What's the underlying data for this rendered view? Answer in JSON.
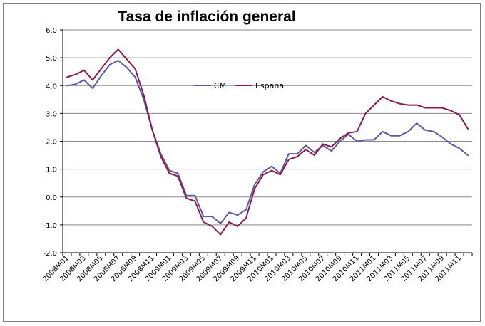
{
  "chart_data": {
    "type": "line",
    "title": "Tasa de inflación general",
    "xlabel": "",
    "ylabel": "",
    "ylim": [
      -2.0,
      6.0
    ],
    "yticks": [
      "-2.0",
      "-1.0",
      "0.0",
      "1.0",
      "2.0",
      "3.0",
      "4.0",
      "5.0",
      "6.0"
    ],
    "grid": true,
    "legend_position": "center-top",
    "categories": [
      "2008M01",
      "2008M02",
      "2008M03",
      "2008M04",
      "2008M05",
      "2008M06",
      "2008M07",
      "2008M08",
      "2008M09",
      "2008M10",
      "2008M11",
      "2008M12",
      "2009M01",
      "2009M02",
      "2009M03",
      "2009M04",
      "2009M05",
      "2009M06",
      "2009M07",
      "2009M08",
      "2009M09",
      "2009M10",
      "2009M11",
      "2009M12",
      "2010M01",
      "2010M02",
      "2010M03",
      "2010M04",
      "2010M05",
      "2010M06",
      "2010M07",
      "2010M08",
      "2010M09",
      "2010M10",
      "2010M11",
      "2010M12",
      "2011M01",
      "2011M02",
      "2011M03",
      "2011M04",
      "2011M05",
      "2011M06",
      "2011M07",
      "2011M08",
      "2011M09",
      "2011M10",
      "2011M11",
      "2011M12"
    ],
    "xtick_labels": [
      "2008M01",
      "2008M03",
      "2008M05",
      "2008M07",
      "2008M09",
      "2008M11",
      "2009M01",
      "2009M03",
      "2009M05",
      "2009M07",
      "2009M09",
      "2009M11",
      "2010M01",
      "2010M03",
      "2010M05",
      "2010M07",
      "2010M09",
      "2010M11",
      "2011M01",
      "2011M03",
      "2011M05",
      "2011M07",
      "2011M09",
      "2011M11"
    ],
    "series": [
      {
        "name": "CM",
        "color": "#5a5aa0",
        "values": [
          4.0,
          4.05,
          4.2,
          3.9,
          4.35,
          4.75,
          4.9,
          4.65,
          4.3,
          3.5,
          2.4,
          1.55,
          0.95,
          0.85,
          0.05,
          0.05,
          -0.7,
          -0.7,
          -0.95,
          -0.55,
          -0.65,
          -0.45,
          0.45,
          0.9,
          1.1,
          0.85,
          1.55,
          1.55,
          1.85,
          1.6,
          1.85,
          1.65,
          2.0,
          2.25,
          2.0,
          2.05,
          2.05,
          2.35,
          2.2,
          2.2,
          2.35,
          2.65,
          2.4,
          2.35,
          2.15,
          1.9,
          1.75,
          1.5
        ]
      },
      {
        "name": "España",
        "color": "#8b1a4a",
        "values": [
          4.3,
          4.4,
          4.55,
          4.2,
          4.6,
          5.0,
          5.3,
          4.95,
          4.6,
          3.65,
          2.4,
          1.45,
          0.85,
          0.75,
          -0.05,
          -0.15,
          -0.9,
          -1.05,
          -1.35,
          -0.9,
          -1.05,
          -0.75,
          0.3,
          0.8,
          0.95,
          0.8,
          1.35,
          1.45,
          1.7,
          1.5,
          1.9,
          1.8,
          2.1,
          2.3,
          2.35,
          3.0,
          3.3,
          3.6,
          3.45,
          3.35,
          3.3,
          3.3,
          3.2,
          3.2,
          3.2,
          3.1,
          2.95,
          2.45
        ]
      }
    ]
  }
}
